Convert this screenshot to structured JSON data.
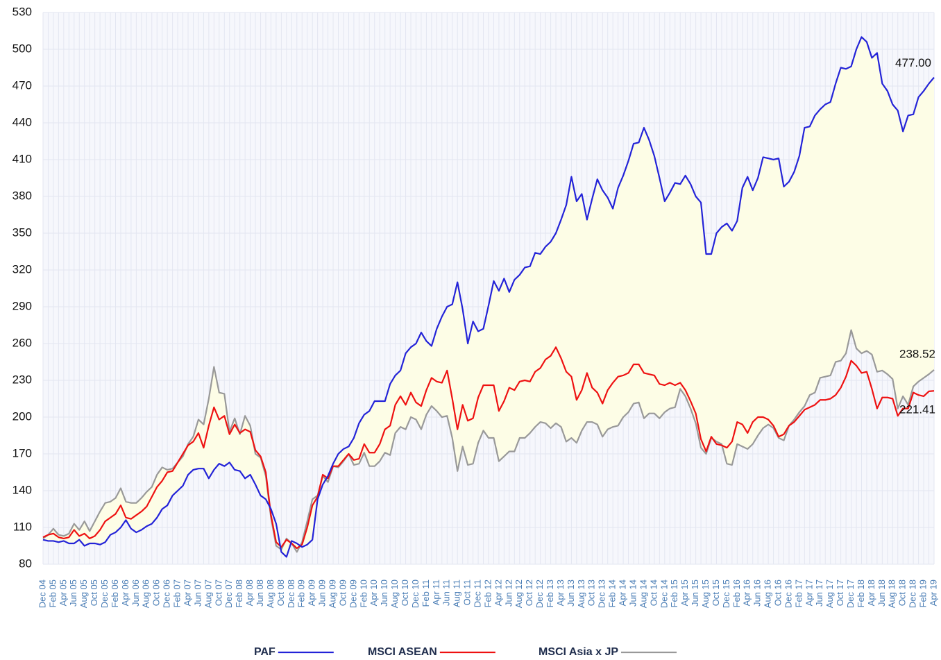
{
  "chart_data": {
    "type": "line",
    "categories": [
      "Dec 04",
      null,
      "Feb 05",
      null,
      "Apr 05",
      null,
      "Jun 05",
      null,
      "Aug 05",
      null,
      "Oct 05",
      null,
      "Dec 05",
      null,
      "Feb 06",
      null,
      "Apr 06",
      null,
      "Jun 06",
      null,
      "Aug 06",
      null,
      "Oct 06",
      null,
      "Dec 06",
      null,
      "Feb 07",
      null,
      "Apr 07",
      null,
      "Jun 07",
      null,
      "Aug 07",
      null,
      "Oct 07",
      null,
      "Dec 07",
      null,
      "Feb 08",
      null,
      "Apr 08",
      null,
      "Jun 08",
      null,
      "Aug 08",
      null,
      "Oct 08",
      null,
      "Dec 08",
      null,
      "Feb 09",
      null,
      "Apr 09",
      null,
      "Jun 09",
      null,
      "Aug 09",
      null,
      "Oct 09",
      null,
      "Dec 09",
      null,
      "Feb 10",
      null,
      "Apr 10",
      null,
      "Jun 10",
      null,
      "Aug 10",
      null,
      "Oct 10",
      null,
      "Dec 10",
      null,
      "Feb 11",
      null,
      "Apr 11",
      null,
      "Jun 11",
      null,
      "Aug 11",
      null,
      "Oct 11",
      null,
      "Dec 11",
      null,
      "Feb 12",
      null,
      "Apr 12",
      null,
      "Jun 12",
      null,
      "Aug 12",
      null,
      "Oct 12",
      null,
      "Dec 12",
      null,
      "Feb 13",
      null,
      "Apr 13",
      null,
      "Jun 13",
      null,
      "Aug 13",
      null,
      "Oct 13",
      null,
      "Dec 13",
      null,
      "Feb 14",
      null,
      "Apr 14",
      null,
      "Jun 14",
      null,
      "Aug 14",
      null,
      "Oct 14",
      null,
      "Dec 14",
      null,
      "Feb 15",
      null,
      "Apr 15",
      null,
      "Jun 15",
      null,
      "Aug 15",
      null,
      "Oct 15",
      null,
      "Dec 15",
      null,
      "Feb 16",
      null,
      "Apr 16",
      null,
      "Jun 16",
      null,
      "Aug 16",
      null,
      "Oct 16",
      null,
      "Dec 16",
      null,
      "Feb 17",
      null,
      "Apr 17",
      null,
      "Jun 17",
      null,
      "Aug 17",
      null,
      "Oct 17",
      null,
      "Dec 17",
      null,
      "Feb 18",
      null,
      "Apr 18",
      null,
      "Jun 18",
      null,
      "Aug 18",
      null,
      "Oct 18",
      null,
      "Dec 18",
      null,
      "Feb 19",
      null,
      "Apr 19"
    ],
    "series": [
      {
        "name": "PAF",
        "color": "#2323d8",
        "values": [
          100,
          99,
          99,
          98,
          99,
          97,
          97,
          100,
          95,
          97,
          97,
          96,
          98,
          104,
          106,
          110,
          116,
          109,
          106,
          108,
          111,
          113,
          118,
          125,
          128,
          136,
          140,
          144,
          153,
          157,
          158,
          158,
          150,
          157,
          162,
          160,
          163,
          157,
          156,
          150,
          153,
          145,
          136,
          133,
          125,
          113,
          90,
          86,
          99,
          97,
          94,
          96,
          100,
          133,
          145,
          152,
          162,
          170,
          174,
          176,
          183,
          195,
          202,
          205,
          213,
          213,
          213,
          227,
          234,
          238,
          252,
          257,
          260,
          269,
          262,
          258,
          272,
          282,
          290,
          292,
          310,
          288,
          260,
          278,
          270,
          272,
          291,
          311,
          303,
          313,
          302,
          312,
          316,
          322,
          323,
          334,
          333,
          339,
          343,
          350,
          361,
          373,
          396,
          376,
          382,
          361,
          378,
          394,
          385,
          379,
          370,
          387,
          397,
          409,
          423,
          424,
          436,
          426,
          413,
          395,
          376,
          383,
          391,
          390,
          397,
          390,
          380,
          375,
          333,
          333,
          350,
          355,
          358,
          352,
          360,
          387,
          396,
          385,
          395,
          412,
          411,
          410,
          411,
          388,
          392,
          400,
          413,
          436,
          437,
          446,
          451,
          455,
          457,
          472,
          485,
          484,
          486,
          500,
          510,
          506,
          493,
          497,
          472,
          466,
          455,
          450,
          433,
          446,
          447,
          461,
          466,
          472,
          477
        ],
        "value_labels": [
          null,
          null,
          null,
          null,
          null,
          null,
          null,
          null,
          null,
          null,
          null,
          null,
          null,
          null,
          null,
          null,
          null,
          null,
          null,
          null,
          null,
          null,
          null,
          null,
          null,
          null,
          null,
          null,
          null,
          null,
          null,
          null,
          null,
          null,
          null,
          null,
          null,
          null,
          null,
          null,
          null,
          null,
          null,
          null,
          null,
          null,
          null,
          null,
          null,
          null,
          null,
          null,
          null,
          null,
          null,
          null,
          null,
          null,
          null,
          null,
          null,
          null,
          null,
          null,
          null,
          null,
          null,
          null,
          null,
          null,
          null,
          null,
          null,
          null,
          null,
          null,
          null,
          null,
          null,
          null,
          null,
          null,
          null,
          null,
          null,
          null,
          null,
          null,
          null,
          null,
          null,
          null,
          null,
          null,
          null,
          null,
          null,
          null,
          null,
          null,
          null,
          null,
          null,
          null,
          null,
          null,
          null,
          null,
          null,
          null,
          null,
          null,
          null,
          null,
          null,
          null,
          null,
          null,
          null,
          null,
          null,
          null,
          null,
          null,
          null,
          null,
          null,
          null,
          null,
          null,
          null,
          null,
          null,
          null,
          null,
          null,
          null,
          null,
          null,
          null,
          null,
          null,
          null,
          null,
          null,
          null,
          null,
          null,
          null,
          null,
          null,
          null,
          null,
          null,
          null,
          null,
          null,
          null,
          null,
          null,
          null,
          null,
          null,
          null,
          null,
          null,
          null,
          null,
          null,
          null,
          null,
          null,
          "477.00"
        ]
      },
      {
        "name": "MSCI ASEAN",
        "color": "#ee1111",
        "values": [
          102,
          104,
          105,
          102,
          101,
          102,
          108,
          103,
          105,
          101,
          103,
          108,
          115,
          118,
          121,
          128,
          118,
          117,
          120,
          123,
          127,
          135,
          143,
          148,
          155,
          156,
          163,
          170,
          177,
          180,
          187,
          175,
          193,
          208,
          198,
          201,
          186,
          194,
          187,
          190,
          188,
          173,
          168,
          155,
          120,
          98,
          94,
          100,
          97,
          93,
          96,
          110,
          128,
          135,
          153,
          150,
          160,
          160,
          165,
          170,
          165,
          166,
          178,
          171,
          171,
          178,
          190,
          193,
          210,
          217,
          210,
          220,
          212,
          209,
          222,
          232,
          229,
          228,
          238,
          215,
          190,
          210,
          197,
          199,
          216,
          226,
          226,
          226,
          205,
          213,
          224,
          222,
          229,
          230,
          229,
          237,
          240,
          247,
          250,
          257,
          248,
          237,
          233,
          214,
          222,
          236,
          224,
          220,
          211,
          222,
          228,
          233,
          234,
          236,
          243,
          243,
          236,
          235,
          234,
          227,
          226,
          228,
          226,
          228,
          222,
          213,
          203,
          182,
          172,
          184,
          178,
          177,
          175,
          180,
          196,
          194,
          187,
          196,
          200,
          200,
          198,
          193,
          184,
          186,
          193,
          196,
          201,
          206,
          208,
          210,
          214,
          214,
          215,
          218,
          224,
          233,
          246,
          242,
          236,
          237,
          223,
          207,
          216,
          216,
          215,
          201,
          207,
          207,
          220,
          218,
          217,
          221,
          221.41
        ]
      },
      {
        "name": "MSCI Asia x JP",
        "color": "#999999",
        "values": [
          101,
          104,
          109,
          104,
          103,
          105,
          113,
          108,
          115,
          107,
          115,
          123,
          130,
          131,
          134,
          142,
          131,
          130,
          130,
          134,
          139,
          143,
          153,
          159,
          157,
          158,
          163,
          168,
          178,
          184,
          198,
          194,
          215,
          241,
          220,
          219,
          188,
          199,
          186,
          201,
          193,
          170,
          167,
          152,
          118,
          95,
          92,
          101,
          97,
          90,
          98,
          115,
          133,
          136,
          152,
          147,
          160,
          159,
          164,
          170,
          161,
          162,
          171,
          160,
          160,
          164,
          171,
          169,
          187,
          192,
          190,
          200,
          198,
          190,
          202,
          209,
          205,
          200,
          201,
          183,
          156,
          176,
          161,
          162,
          179,
          189,
          183,
          183,
          164,
          168,
          172,
          172,
          183,
          183,
          187,
          192,
          196,
          195,
          191,
          195,
          192,
          180,
          183,
          179,
          189,
          196,
          196,
          194,
          184,
          190,
          192,
          193,
          200,
          204,
          211,
          212,
          199,
          203,
          203,
          199,
          204,
          207,
          208,
          223,
          217,
          207,
          195,
          175,
          170,
          183,
          180,
          178,
          162,
          161,
          178,
          176,
          174,
          178,
          185,
          191,
          194,
          191,
          183,
          181,
          193,
          198,
          204,
          209,
          218,
          220,
          232,
          233,
          234,
          245,
          246,
          252,
          271,
          256,
          252,
          254,
          251,
          237,
          238,
          235,
          231,
          207,
          217,
          210,
          225,
          229,
          232,
          235,
          238.52
        ]
      }
    ],
    "ylim": [
      80,
      530
    ],
    "yticks": [
      80,
      110,
      140,
      170,
      200,
      230,
      260,
      290,
      320,
      350,
      380,
      410,
      440,
      470,
      500,
      530
    ],
    "grid": true,
    "band_color": "#fdfde6",
    "legend": "bottom"
  }
}
